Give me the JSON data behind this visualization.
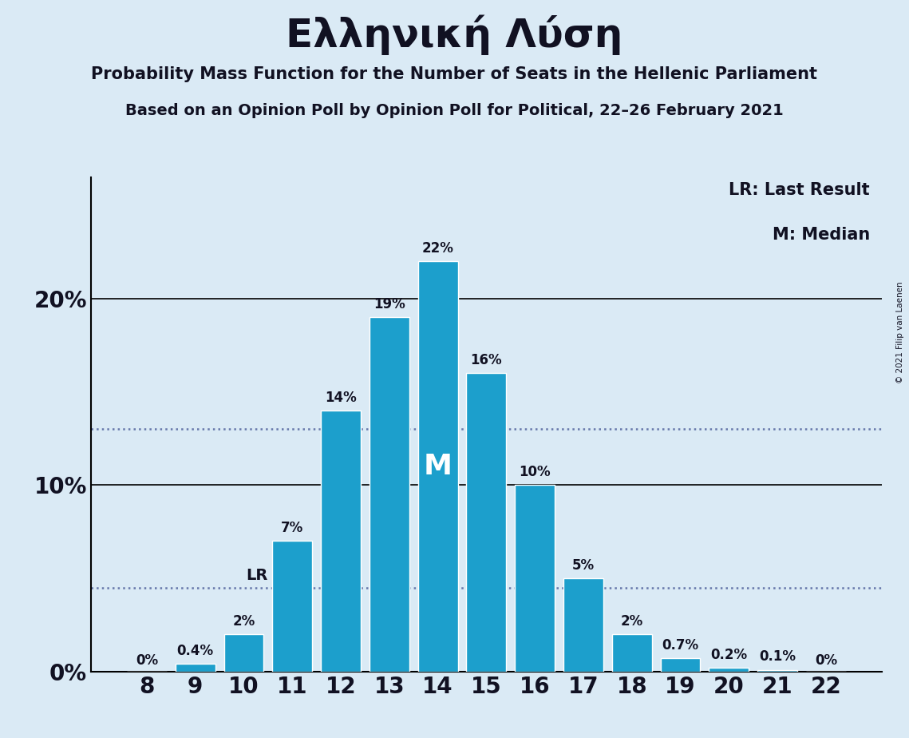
{
  "title": "Ελληνική Λύση",
  "subtitle1": "Probability Mass Function for the Number of Seats in the Hellenic Parliament",
  "subtitle2": "Based on an Opinion Poll by Opinion Poll for Political, 22–26 February 2021",
  "copyright": "© 2021 Filip van Laenen",
  "categories": [
    8,
    9,
    10,
    11,
    12,
    13,
    14,
    15,
    16,
    17,
    18,
    19,
    20,
    21,
    22
  ],
  "values": [
    0.0,
    0.4,
    2.0,
    7.0,
    14.0,
    19.0,
    22.0,
    16.0,
    10.0,
    5.0,
    2.0,
    0.7,
    0.2,
    0.1,
    0.0
  ],
  "labels": [
    "0%",
    "0.4%",
    "2%",
    "7%",
    "14%",
    "19%",
    "22%",
    "16%",
    "10%",
    "5%",
    "2%",
    "0.7%",
    "0.2%",
    "0.1%",
    "0%"
  ],
  "bar_color": "#1c9fcc",
  "background_color": "#daeaf5",
  "text_color": "#111122",
  "median_bar_index": 6,
  "lr_bar_index": 2,
  "lr_value": 4.5,
  "dotted_line1": 4.5,
  "dotted_line2": 13.0,
  "yticks": [
    0,
    10,
    20
  ],
  "ylim": [
    0,
    26.5
  ],
  "legend_lr": "LR: Last Result",
  "legend_m": "M: Median",
  "dotted_line_color": "#6677aa"
}
